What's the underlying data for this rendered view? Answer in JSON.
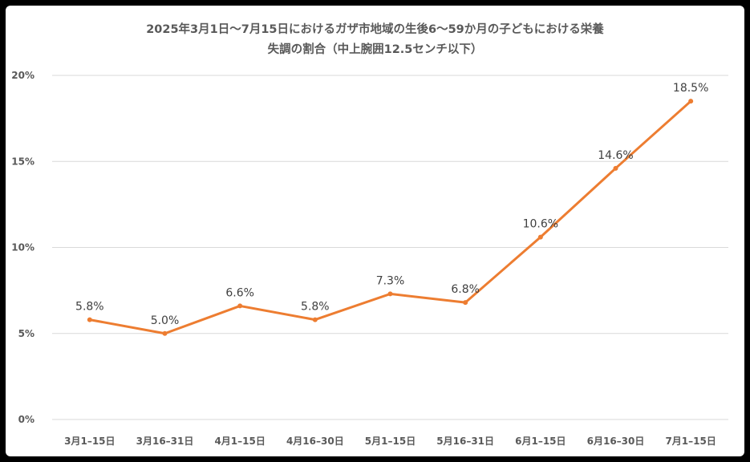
{
  "chart_data": {
    "type": "line",
    "title_line1": "2025年3月1日〜7月15日におけるガザ市地域の生後6〜59か月の子どもにおける栄養",
    "title_line2": "失調の割合（中上腕囲12.5センチ以下）",
    "categories": [
      "3月1–15日",
      "3月16–31日",
      "4月1–15日",
      "4月16–30日",
      "5月1–15日",
      "5月16–31日",
      "6月1–15日",
      "6月16–30日",
      "7月1–15日"
    ],
    "series": [
      {
        "values": [
          5.8,
          5.0,
          6.6,
          5.8,
          7.3,
          6.8,
          10.6,
          14.6,
          18.5
        ],
        "labels": [
          "5.8%",
          "5.0%",
          "6.6%",
          "5.8%",
          "7.3%",
          "6.8%",
          "10.6%",
          "14.6%",
          "18.5%"
        ],
        "color": "#ED7D31"
      }
    ],
    "yticks": [
      0,
      5,
      10,
      15,
      20
    ],
    "ytick_labels": [
      "0%",
      "5%",
      "10%",
      "15%",
      "20%"
    ],
    "ylim": [
      0,
      20
    ],
    "grid": true,
    "legend": "none"
  }
}
